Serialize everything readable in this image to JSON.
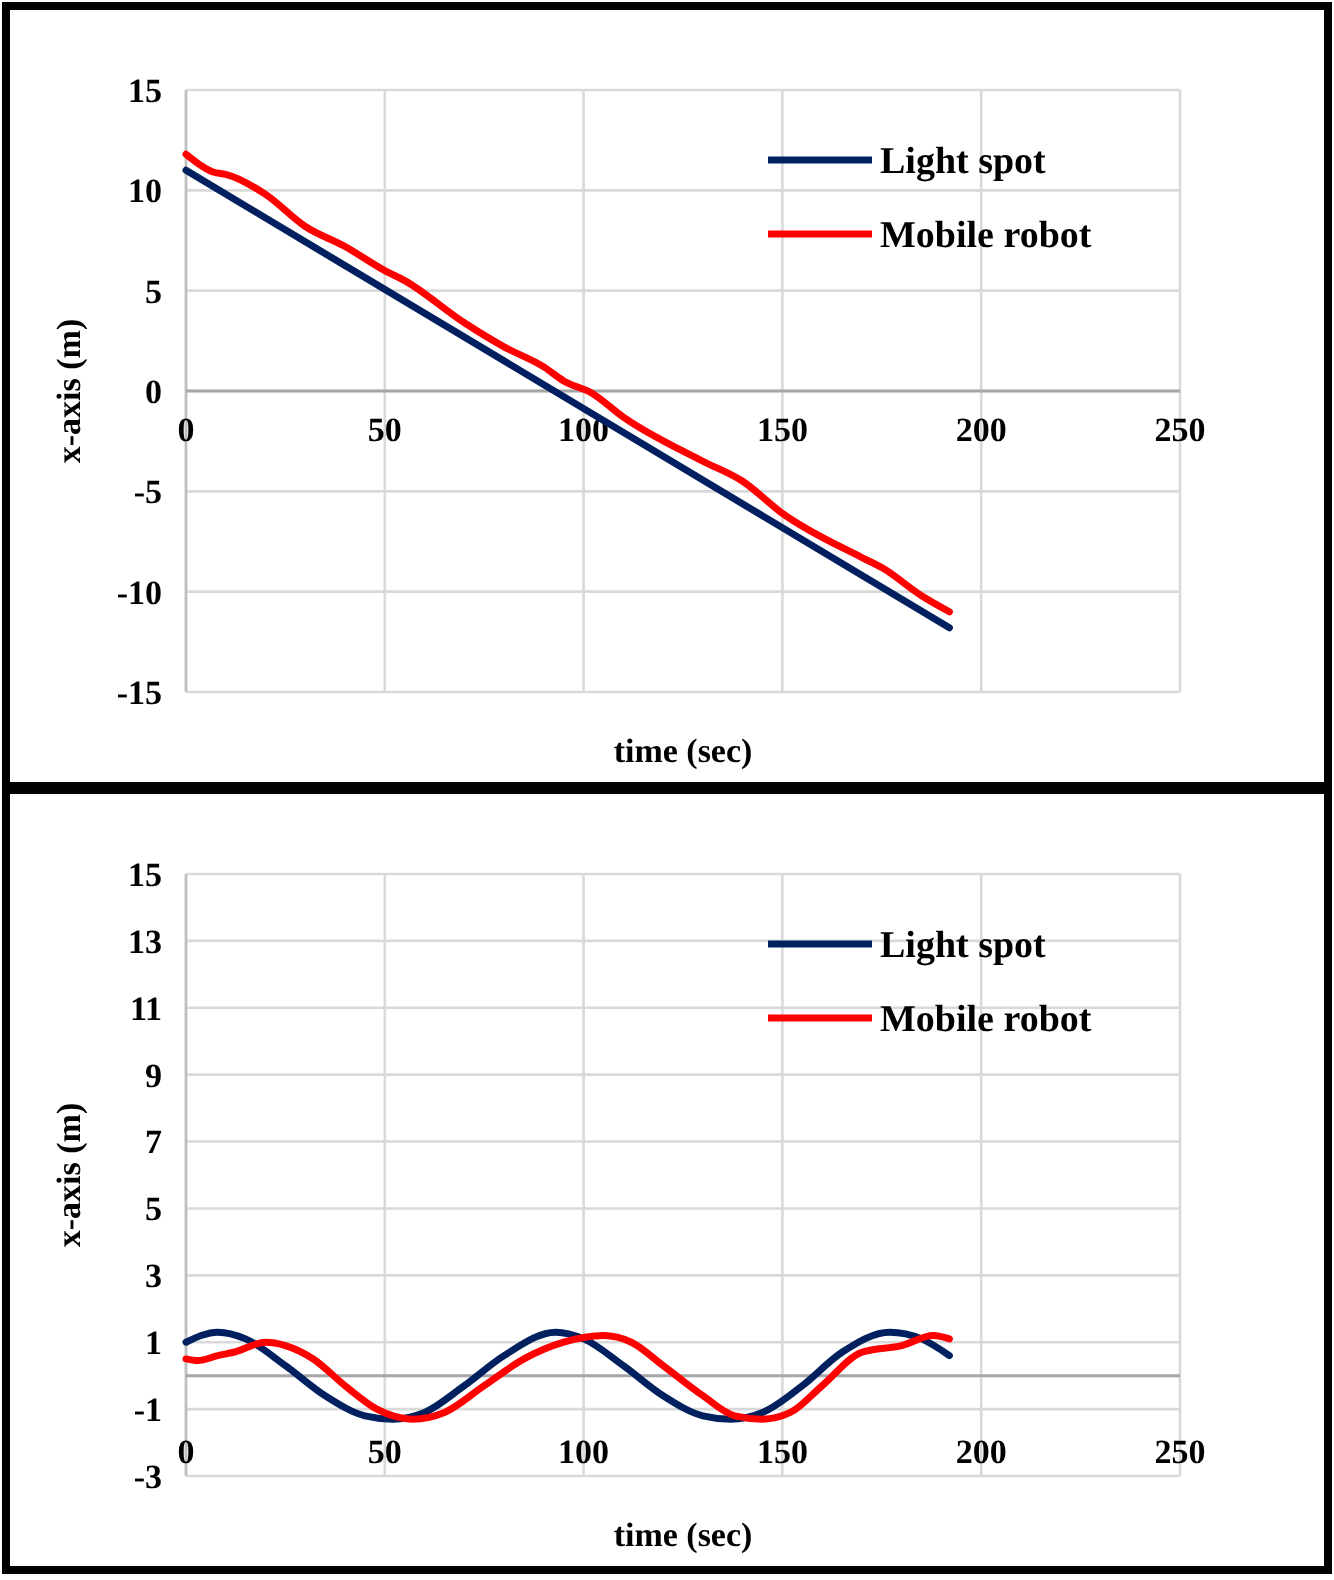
{
  "chart_data": [
    {
      "type": "line",
      "xlabel": "time (sec)",
      "ylabel": "x-axis (m)",
      "xlim": [
        0,
        250
      ],
      "xticks": [
        0,
        50,
        100,
        150,
        200,
        250
      ],
      "ylim": [
        -15,
        15
      ],
      "yticks": [
        -15,
        -10,
        -5,
        0,
        5,
        10,
        15
      ],
      "grid": true,
      "legend": "top right",
      "line_style": "solid",
      "series": [
        {
          "name": "Light spot",
          "color": "#002060",
          "x": [
            0,
            192
          ],
          "values": [
            11,
            -11.8
          ]
        },
        {
          "name": "Mobile robot",
          "color": "#ff0000",
          "x": [
            0,
            7,
            10,
            20,
            30,
            40,
            50,
            55,
            70,
            80,
            90,
            95,
            102,
            110,
            130,
            140,
            150,
            170,
            175,
            185,
            192
          ],
          "values": [
            11.8,
            10.9,
            10.8,
            9.8,
            8.2,
            7.2,
            6,
            5.5,
            3.4,
            2.2,
            1.2,
            0.5,
            -0.1,
            -1.3,
            -3.5,
            -4.5,
            -6.1,
            -8.3,
            -8.8,
            -10.2,
            -11
          ]
        }
      ]
    },
    {
      "type": "line",
      "xlabel": "time (sec)",
      "ylabel": "x-axis (m)",
      "xlim": [
        0,
        250
      ],
      "xticks": [
        0,
        50,
        100,
        150,
        200,
        250
      ],
      "ylim": [
        -3,
        15
      ],
      "yticks": [
        -3,
        -1,
        1,
        3,
        5,
        7,
        9,
        11,
        13,
        15
      ],
      "grid": true,
      "legend": "top right",
      "line_style": "solid",
      "series": [
        {
          "name": "Light spot",
          "color": "#002060",
          "x": [
            0,
            8,
            15,
            25,
            35,
            45,
            52,
            60,
            70,
            80,
            93,
            100,
            110,
            120,
            130,
            137,
            145,
            155,
            165,
            177,
            185,
            192
          ],
          "values": [
            1,
            1.3,
            1.1,
            0.3,
            -0.6,
            -1.2,
            -1.3,
            -1.1,
            -0.3,
            0.6,
            1.3,
            1.1,
            0.3,
            -0.6,
            -1.2,
            -1.3,
            -1.1,
            -0.3,
            0.7,
            1.3,
            1.1,
            0.6
          ]
        },
        {
          "name": "Mobile robot",
          "color": "#ff0000",
          "x": [
            0,
            3,
            8,
            12,
            20,
            25,
            32,
            40,
            48,
            57,
            65,
            75,
            85,
            95,
            105,
            112,
            120,
            130,
            138,
            145,
            152,
            160,
            170,
            180,
            188,
            192
          ],
          "values": [
            0.5,
            0.45,
            0.6,
            0.7,
            1,
            0.9,
            0.5,
            -0.3,
            -1,
            -1.3,
            -1.1,
            -0.3,
            0.5,
            1,
            1.2,
            1,
            0.3,
            -0.6,
            -1.2,
            -1.3,
            -1.1,
            -0.3,
            0.7,
            0.9,
            1.2,
            1.1
          ]
        }
      ]
    }
  ]
}
